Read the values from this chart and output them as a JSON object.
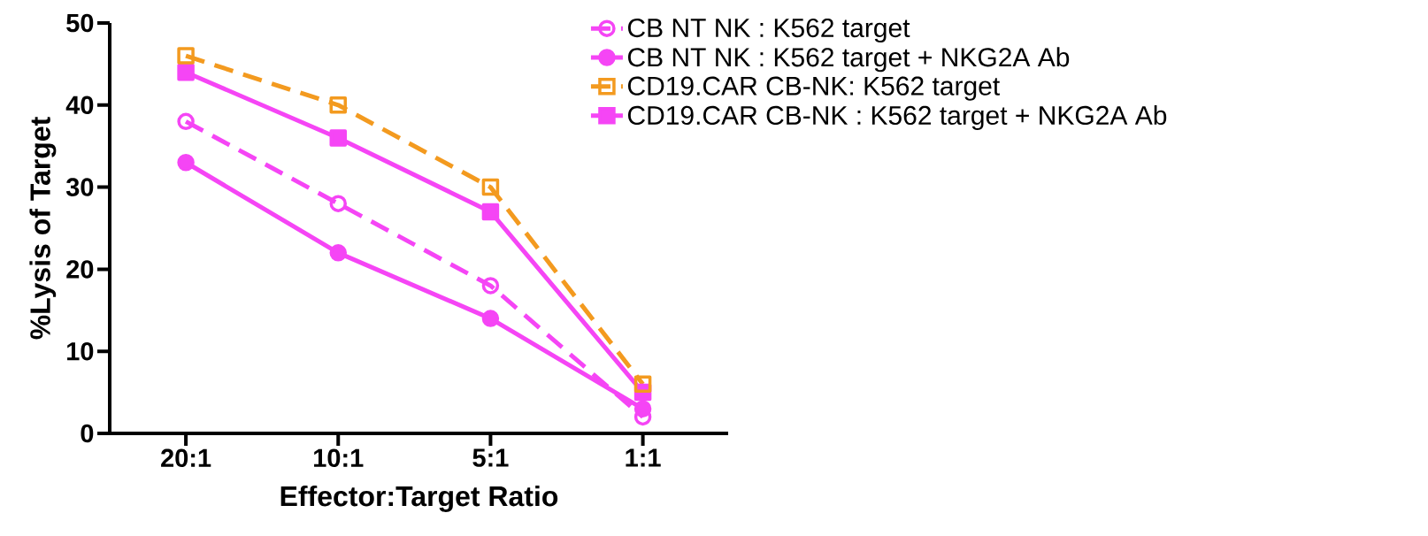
{
  "chart_data": {
    "type": "line",
    "xlabel": "Effector:Target Ratio",
    "ylabel": "%Lysis of Target",
    "categories": [
      "20:1",
      "10:1",
      "5:1",
      "1:1"
    ],
    "ylim": [
      0,
      50
    ],
    "yticks": [
      0,
      10,
      20,
      30,
      40,
      50
    ],
    "grid": false,
    "legend": "top right",
    "series": [
      {
        "name": "CB NT NK : K562 target",
        "color": "#f545f5",
        "values": [
          38,
          28,
          18,
          2
        ],
        "marker": "circle",
        "line_style": "dashed"
      },
      {
        "name": "CB NT NK : K562 target + NKG2A Ab",
        "color": "#f545f5",
        "values": [
          33,
          22,
          14,
          3
        ],
        "marker": "circle",
        "line_style": "solid"
      },
      {
        "name": "CD19.CAR CB-NK: K562 target",
        "color": "#f39a1f",
        "values": [
          46,
          40,
          30,
          6
        ],
        "marker": "square",
        "line_style": "dashed"
      },
      {
        "name": "CD19.CAR CB-NK : K562 target + NKG2A Ab",
        "color": "#f545f5",
        "values": [
          44,
          36,
          27,
          5
        ],
        "marker": "square",
        "line_style": "solid"
      }
    ]
  }
}
